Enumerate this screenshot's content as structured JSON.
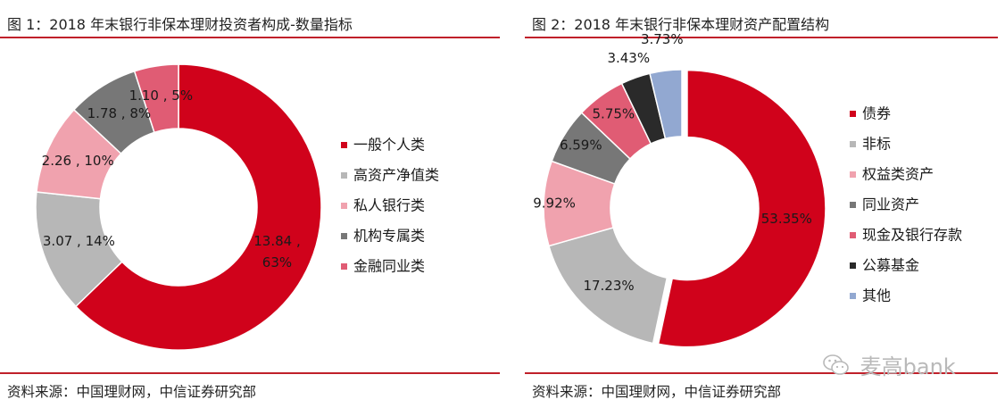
{
  "charts": [
    {
      "title": "图 1：2018 年末银行非保本理财投资者构成-数量指标",
      "source": "资料来源：中国理财网，中信证券研究部"
    },
    {
      "title": "图 2：2018 年末银行非保本理财资产配置结构",
      "source": "资料来源：中国理财网，中信证券研究部"
    }
  ],
  "watermark": {
    "text": "麦高bank",
    "icon": "wechat-icon"
  },
  "chart_data": [
    {
      "type": "pie",
      "style": "donut",
      "categories": [
        "一般个人类",
        "高资产净值类",
        "私人银行类",
        "机构专属类",
        "金融同业类"
      ],
      "values": [
        13.84,
        3.07,
        2.26,
        1.78,
        1.1
      ],
      "percents": [
        "63%",
        "14%",
        "10%",
        "8%",
        "5%"
      ],
      "data_labels": [
        "13.84，63%",
        "3.07，14%",
        "2.26，10%",
        "1.78，8%",
        "1.10，5%"
      ],
      "colors": [
        "#d0021b",
        "#b7b7b7",
        "#f0a2ae",
        "#777777",
        "#e05c74"
      ],
      "legend": "right"
    },
    {
      "type": "pie",
      "style": "donut",
      "categories": [
        "债券",
        "非标",
        "权益类资产",
        "同业资产",
        "现金及银行存款",
        "公募基金",
        "其他"
      ],
      "values": [
        53.35,
        17.23,
        9.92,
        6.59,
        5.75,
        3.43,
        3.73
      ],
      "data_labels": [
        "53.35%",
        "17.23%",
        "9.92%",
        "6.59%",
        "5.75%",
        "3.43%",
        "3.73%"
      ],
      "colors": [
        "#d0021b",
        "#b7b7b7",
        "#f0a2ae",
        "#777777",
        "#e05c74",
        "#2a2a2a",
        "#92a8d1"
      ],
      "legend": "right"
    }
  ]
}
